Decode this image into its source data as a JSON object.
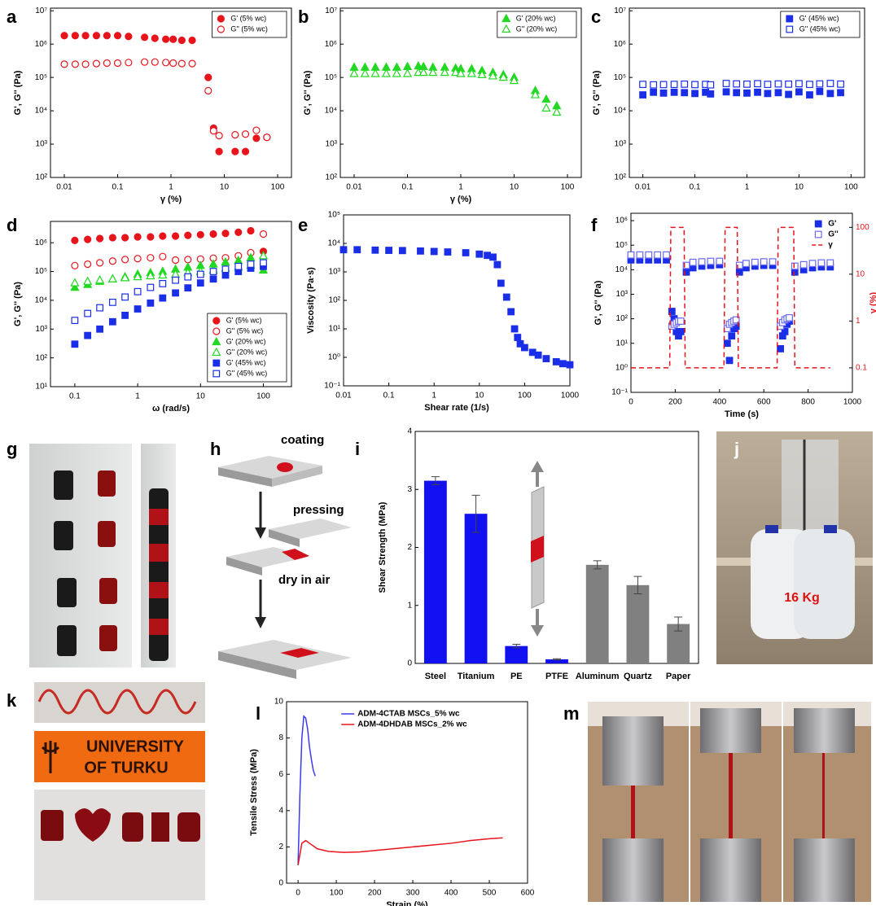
{
  "panel_labels": [
    "a",
    "b",
    "c",
    "d",
    "e",
    "f",
    "g",
    "h",
    "i",
    "j",
    "k",
    "l",
    "m"
  ],
  "schematic": {
    "steps": [
      "coating",
      "pressing",
      "dry in air"
    ]
  },
  "photos": {
    "weight": "16 Kg",
    "logo": [
      "UNIVERSITY",
      "OF TURKU"
    ]
  },
  "chart_data": [
    {
      "type": "scatter",
      "xscale": "log",
      "yscale": "log",
      "xlabel": "γ (%)",
      "ylabel": "G', G'' (Pa)",
      "xlim": [
        0.0055,
        182
      ],
      "ylim": [
        100,
        12000000
      ],
      "xticks": [
        0.01,
        0.1,
        1,
        10,
        100
      ],
      "yticks": [
        {
          "value": 100,
          "label": "10²"
        },
        {
          "value": 1000,
          "label": "10³"
        },
        {
          "value": 10000,
          "label": "10⁴"
        },
        {
          "value": 100000,
          "label": "10⁵"
        },
        {
          "value": 1000000,
          "label": "10⁶"
        },
        {
          "value": 10000000,
          "label": "10⁷"
        }
      ],
      "legend": "upper right",
      "legend_frame": true,
      "x": [
        0.01,
        0.016,
        0.025,
        0.04,
        0.063,
        0.1,
        0.16,
        0.32,
        0.5,
        0.8,
        1.1,
        1.6,
        2.5,
        5,
        6.3,
        8,
        16,
        25,
        40,
        63
      ],
      "series": [
        {
          "name": "G' (5% wc)",
          "color": "#e8141c",
          "marker": "circle",
          "fill": "solid",
          "values": [
            1800000,
            1800000,
            1800000,
            1800000,
            1800000,
            1800000,
            1700000,
            1600000,
            1500000,
            1400000,
            1400000,
            1300000,
            1300000,
            100000,
            3000,
            600,
            600,
            600,
            1500,
            1600
          ]
        },
        {
          "name": "G'' (5% wc)",
          "color": "#e8141c",
          "marker": "circle",
          "fill": "open",
          "values": [
            250000,
            250000,
            250000,
            260000,
            270000,
            270000,
            280000,
            290000,
            290000,
            280000,
            270000,
            260000,
            260000,
            40000,
            2500,
            1800,
            1900,
            2000,
            2600,
            1600
          ]
        }
      ]
    },
    {
      "type": "scatter",
      "xscale": "log",
      "yscale": "log",
      "xlabel": "γ (%)",
      "ylabel": "G', G'' (Pa)",
      "xlim": [
        0.0055,
        182
      ],
      "ylim": [
        100,
        12000000
      ],
      "xticks": [
        0.01,
        0.1,
        1,
        10,
        100
      ],
      "yticks": [
        {
          "value": 100,
          "label": "10²"
        },
        {
          "value": 1000,
          "label": "10³"
        },
        {
          "value": 10000,
          "label": "10⁴"
        },
        {
          "value": 100000,
          "label": "10⁵"
        },
        {
          "value": 1000000,
          "label": "10⁶"
        },
        {
          "value": 10000000,
          "label": "10⁷"
        }
      ],
      "legend": "upper right",
      "legend_frame": true,
      "x": [
        0.01,
        0.016,
        0.025,
        0.04,
        0.063,
        0.1,
        0.16,
        0.2,
        0.3,
        0.5,
        0.8,
        1,
        1.6,
        2.5,
        4,
        6.3,
        10,
        25,
        40,
        63
      ],
      "series": [
        {
          "name": "G' (20% wc)",
          "color": "#22d822",
          "marker": "triangle",
          "fill": "solid",
          "values": [
            200000,
            200000,
            200000,
            200000,
            200000,
            210000,
            220000,
            210000,
            200000,
            200000,
            190000,
            180000,
            180000,
            160000,
            140000,
            120000,
            100000,
            40000,
            22000,
            14000
          ]
        },
        {
          "name": "G'' (20% wc)",
          "color": "#22d822",
          "marker": "triangle",
          "fill": "open",
          "values": [
            130000,
            130000,
            130000,
            130000,
            130000,
            130000,
            140000,
            140000,
            140000,
            140000,
            140000,
            130000,
            130000,
            120000,
            110000,
            100000,
            80000,
            30000,
            12000,
            9000
          ]
        }
      ]
    },
    {
      "type": "scatter",
      "xscale": "log",
      "yscale": "log",
      "ylabel": "G', G'' (Pa)",
      "xlim": [
        0.0055,
        182
      ],
      "ylim": [
        100,
        12000000
      ],
      "xticks": [
        0.01,
        0.1,
        1,
        10,
        100
      ],
      "yticks": [
        {
          "value": 100,
          "label": "10²"
        },
        {
          "value": 1000,
          "label": "10³"
        },
        {
          "value": 10000,
          "label": "10⁴"
        },
        {
          "value": 100000,
          "label": "10⁵"
        },
        {
          "value": 1000000,
          "label": "10⁶"
        },
        {
          "value": 10000000,
          "label": "10⁷"
        }
      ],
      "legend": "upper right",
      "legend_frame": true,
      "x": [
        0.01,
        0.016,
        0.025,
        0.04,
        0.063,
        0.1,
        0.16,
        0.2,
        0.4,
        0.63,
        1,
        1.6,
        2.5,
        4,
        6.3,
        10,
        16,
        25,
        40,
        63
      ],
      "series": [
        {
          "name": "G' (45% wc)",
          "color": "#1a2ee8",
          "marker": "square",
          "fill": "solid",
          "values": [
            30000,
            36000,
            34000,
            36000,
            35000,
            33000,
            36000,
            32000,
            37000,
            35000,
            34000,
            36000,
            33000,
            35000,
            31000,
            37000,
            30000,
            38000,
            33000,
            35000
          ]
        },
        {
          "name": "G'' (45% wc)",
          "color": "#1a2ee8",
          "marker": "square",
          "fill": "open",
          "values": [
            62000,
            60000,
            61000,
            62000,
            63000,
            61000,
            62000,
            60000,
            66000,
            64000,
            63000,
            65000,
            62000,
            64000,
            63000,
            65000,
            62000,
            64000,
            66000,
            63000
          ]
        }
      ]
    },
    {
      "type": "scatter",
      "xscale": "log",
      "yscale": "log",
      "xlabel": "ω (rad/s)",
      "ylabel": "G', G'' (Pa)",
      "xlim": [
        0.041,
        280
      ],
      "ylim": [
        10,
        5500000
      ],
      "xticks": [
        0.1,
        1,
        10,
        100
      ],
      "yticks": [
        {
          "value": 10,
          "label": "10¹"
        },
        {
          "value": 100,
          "label": "10²"
        },
        {
          "value": 1000,
          "label": "10³"
        },
        {
          "value": 10000,
          "label": "10⁴"
        },
        {
          "value": 100000,
          "label": "10⁵"
        },
        {
          "value": 1000000,
          "label": "10⁶"
        }
      ],
      "legend": "lower right",
      "legend_frame": true,
      "x": [
        0.1,
        0.16,
        0.25,
        0.4,
        0.63,
        1,
        1.6,
        2.5,
        4,
        6.3,
        10,
        16,
        25,
        40,
        63,
        100
      ],
      "series": [
        {
          "name": "G' (5% wc)",
          "color": "#e8141c",
          "marker": "circle",
          "fill": "solid",
          "values": [
            1200000,
            1300000,
            1400000,
            1500000,
            1500000,
            1600000,
            1600000,
            1700000,
            1700000,
            1800000,
            1900000,
            2000000,
            2100000,
            2300000,
            2600000,
            500000
          ]
        },
        {
          "name": "G'' (5% wc)",
          "color": "#e8141c",
          "marker": "circle",
          "fill": "open",
          "values": [
            160000,
            180000,
            200000,
            230000,
            260000,
            280000,
            300000,
            330000,
            250000,
            260000,
            270000,
            290000,
            300000,
            350000,
            450000,
            2000000
          ]
        },
        {
          "name": "G'  (20% wc)",
          "color": "#22d822",
          "marker": "triangle",
          "fill": "solid",
          "values": [
            28000,
            35000,
            45000,
            55000,
            65000,
            80000,
            90000,
            100000,
            120000,
            140000,
            160000,
            180000,
            210000,
            240000,
            300000,
            110000
          ]
        },
        {
          "name": "G'' (20% wc)",
          "color": "#22d822",
          "marker": "triangle",
          "fill": "open",
          "values": [
            40000,
            45000,
            50000,
            55000,
            60000,
            65000,
            70000,
            75000,
            80000,
            90000,
            100000,
            110000,
            130000,
            140000,
            160000,
            350000
          ]
        },
        {
          "name": "G' (45% wc)",
          "color": "#1a2ee8",
          "marker": "square",
          "fill": "solid",
          "values": [
            300,
            600,
            1000,
            1800,
            3000,
            5000,
            8000,
            12000,
            18000,
            27000,
            40000,
            55000,
            75000,
            100000,
            130000,
            150000
          ]
        },
        {
          "name": "G'' (45% wc)",
          "color": "#1a2ee8",
          "marker": "square",
          "fill": "open",
          "values": [
            2000,
            3500,
            5500,
            8500,
            13000,
            20000,
            28000,
            38000,
            50000,
            65000,
            80000,
            100000,
            120000,
            150000,
            180000,
            200000
          ]
        }
      ]
    },
    {
      "type": "scatter",
      "xscale": "log",
      "yscale": "log",
      "xlabel": "Shear rate (1/s)",
      "ylabel": "Viscosity (Pa·s)",
      "xlim": [
        0.01,
        1000
      ],
      "ylim": [
        0.1,
        100000
      ],
      "xticks": [
        0.01,
        0.1,
        1,
        10,
        100,
        1000
      ],
      "yticks": [
        {
          "value": 0.1,
          "label": "10⁻¹"
        },
        {
          "value": 1,
          "label": "10⁰"
        },
        {
          "value": 10,
          "label": "10¹"
        },
        {
          "value": 100,
          "label": "10²"
        },
        {
          "value": 1000,
          "label": "10³"
        },
        {
          "value": 10000,
          "label": "10⁴"
        },
        {
          "value": 100000,
          "label": "10⁵"
        }
      ],
      "x": [
        0.01,
        0.02,
        0.05,
        0.1,
        0.2,
        0.5,
        1,
        2,
        5,
        10,
        15,
        20,
        25,
        30,
        40,
        50,
        60,
        70,
        80,
        100,
        150,
        200,
        300,
        500,
        700,
        1000
      ],
      "series": [
        {
          "color": "#1a2ee8",
          "marker": "square",
          "fill": "solid",
          "values": [
            6000,
            6000,
            5800,
            5700,
            5600,
            5400,
            5200,
            5000,
            4700,
            4200,
            3800,
            3300,
            1800,
            400,
            130,
            40,
            10,
            5,
            3,
            2.2,
            1.5,
            1.2,
            0.9,
            0.7,
            0.6,
            0.55
          ]
        }
      ]
    },
    {
      "type": "scatter",
      "yscale": "log",
      "y2scale": "log",
      "xlabel": "Time (s)",
      "ylabel": "G', G'' (Pa)",
      "y2label": "γ (%)",
      "xlim": [
        0,
        1000
      ],
      "ylim": [
        0.1,
        2000000
      ],
      "y2lim": [
        0.03,
        200
      ],
      "xticks": [
        0,
        200,
        400,
        600,
        800,
        1000
      ],
      "yticks": [
        {
          "value": 0.1,
          "label": "10⁻¹"
        },
        {
          "value": 1,
          "label": "10⁰"
        },
        {
          "value": 10,
          "label": "10¹"
        },
        {
          "value": 100,
          "label": "10²"
        },
        {
          "value": 1000,
          "label": "10³"
        },
        {
          "value": 10000,
          "label": "10⁴"
        },
        {
          "value": 100000,
          "label": "10⁵"
        },
        {
          "value": 1000000,
          "label": "10⁶"
        }
      ],
      "y2ticks": [
        0.1,
        1,
        10,
        100
      ],
      "legend": "upper right",
      "legend_frame": false,
      "x": [
        0,
        40,
        80,
        120,
        160,
        185,
        195,
        205,
        215,
        225,
        250,
        280,
        320,
        360,
        400,
        435,
        445,
        455,
        465,
        475,
        490,
        520,
        560,
        600,
        640,
        675,
        685,
        695,
        705,
        715,
        740,
        780,
        820,
        860,
        900
      ],
      "series": [
        {
          "name": "G'",
          "color": "#1a2ee8",
          "marker": "square",
          "fill": "solid",
          "values": [
            25000,
            25000,
            25000,
            25000,
            25000,
            200,
            100,
            30,
            20,
            30,
            8000,
            12000,
            14000,
            15000,
            16000,
            10,
            2,
            20,
            40,
            50,
            8000,
            12000,
            14000,
            15000,
            15000,
            6,
            20,
            30,
            60,
            80,
            8000,
            10000,
            12000,
            13000,
            13000
          ]
        },
        {
          "name": "G''",
          "color": "#6a6af0",
          "marker": "square",
          "fill": "open",
          "values": [
            40000,
            40000,
            40000,
            40000,
            40000,
            50,
            60,
            70,
            80,
            80,
            15000,
            20000,
            21000,
            22000,
            22000,
            40,
            60,
            70,
            80,
            90,
            15000,
            18000,
            20000,
            21000,
            21000,
            50,
            70,
            90,
            100,
            110,
            14000,
            16000,
            18000,
            19000,
            19000
          ]
        },
        {
          "name": "γ",
          "color": "#e8141c",
          "dash": true,
          "axis": "y2",
          "x": [
            0,
            175,
            180,
            240,
            245,
            420,
            425,
            480,
            485,
            660,
            665,
            735,
            740,
            900
          ],
          "values": [
            0.1,
            0.1,
            100,
            100,
            0.1,
            0.1,
            100,
            100,
            0.1,
            0.1,
            100,
            100,
            0.1,
            0.1
          ]
        }
      ]
    },
    {
      "type": "bar",
      "ylabel": "Shear Strength (MPa)",
      "ylim": [
        0,
        4
      ],
      "yticks": [
        0,
        1,
        2,
        3,
        4
      ],
      "categories": [
        "Steel",
        "Titanium",
        "PE",
        "PTFE",
        "Aluminum",
        "Quartz",
        "Paper"
      ],
      "values": [
        3.15,
        2.58,
        0.3,
        0.07,
        1.7,
        1.35,
        0.68
      ],
      "errors": [
        0.07,
        0.32,
        0.03,
        0.01,
        0.07,
        0.15,
        0.12
      ],
      "colors": [
        "#1010f0",
        "#1010f0",
        "#1010f0",
        "#1010f0",
        "#808080",
        "#808080",
        "#808080"
      ]
    },
    {
      "type": "line",
      "xlabel": "Strain (%)",
      "ylabel": "Tensile Stress (MPa)",
      "xlim": [
        -30,
        600
      ],
      "ylim": [
        0,
        10
      ],
      "xticks": [
        0,
        100,
        200,
        300,
        400,
        500,
        600
      ],
      "yticks": [
        0,
        2,
        4,
        6,
        8,
        10
      ],
      "legend": "upper center",
      "legend_frame": false,
      "series": [
        {
          "name": "ADM-4CTAB MSCs_5% wc",
          "color": "#3a3af0",
          "x": [
            0,
            5,
            10,
            15,
            20,
            25,
            30,
            35,
            40,
            45
          ],
          "values": [
            1,
            5,
            8,
            9.2,
            9.1,
            8.5,
            7.5,
            6.8,
            6.2,
            5.9
          ]
        },
        {
          "name": "ADM-4DHDAB MSCs_2% wc",
          "color": "#e8141c",
          "x": [
            0,
            10,
            20,
            30,
            50,
            80,
            120,
            160,
            200,
            250,
            300,
            350,
            400,
            450,
            500,
            535
          ],
          "values": [
            1,
            2.2,
            2.35,
            2.2,
            1.9,
            1.75,
            1.7,
            1.72,
            1.8,
            1.9,
            2,
            2.1,
            2.2,
            2.35,
            2.45,
            2.5
          ]
        }
      ]
    }
  ]
}
